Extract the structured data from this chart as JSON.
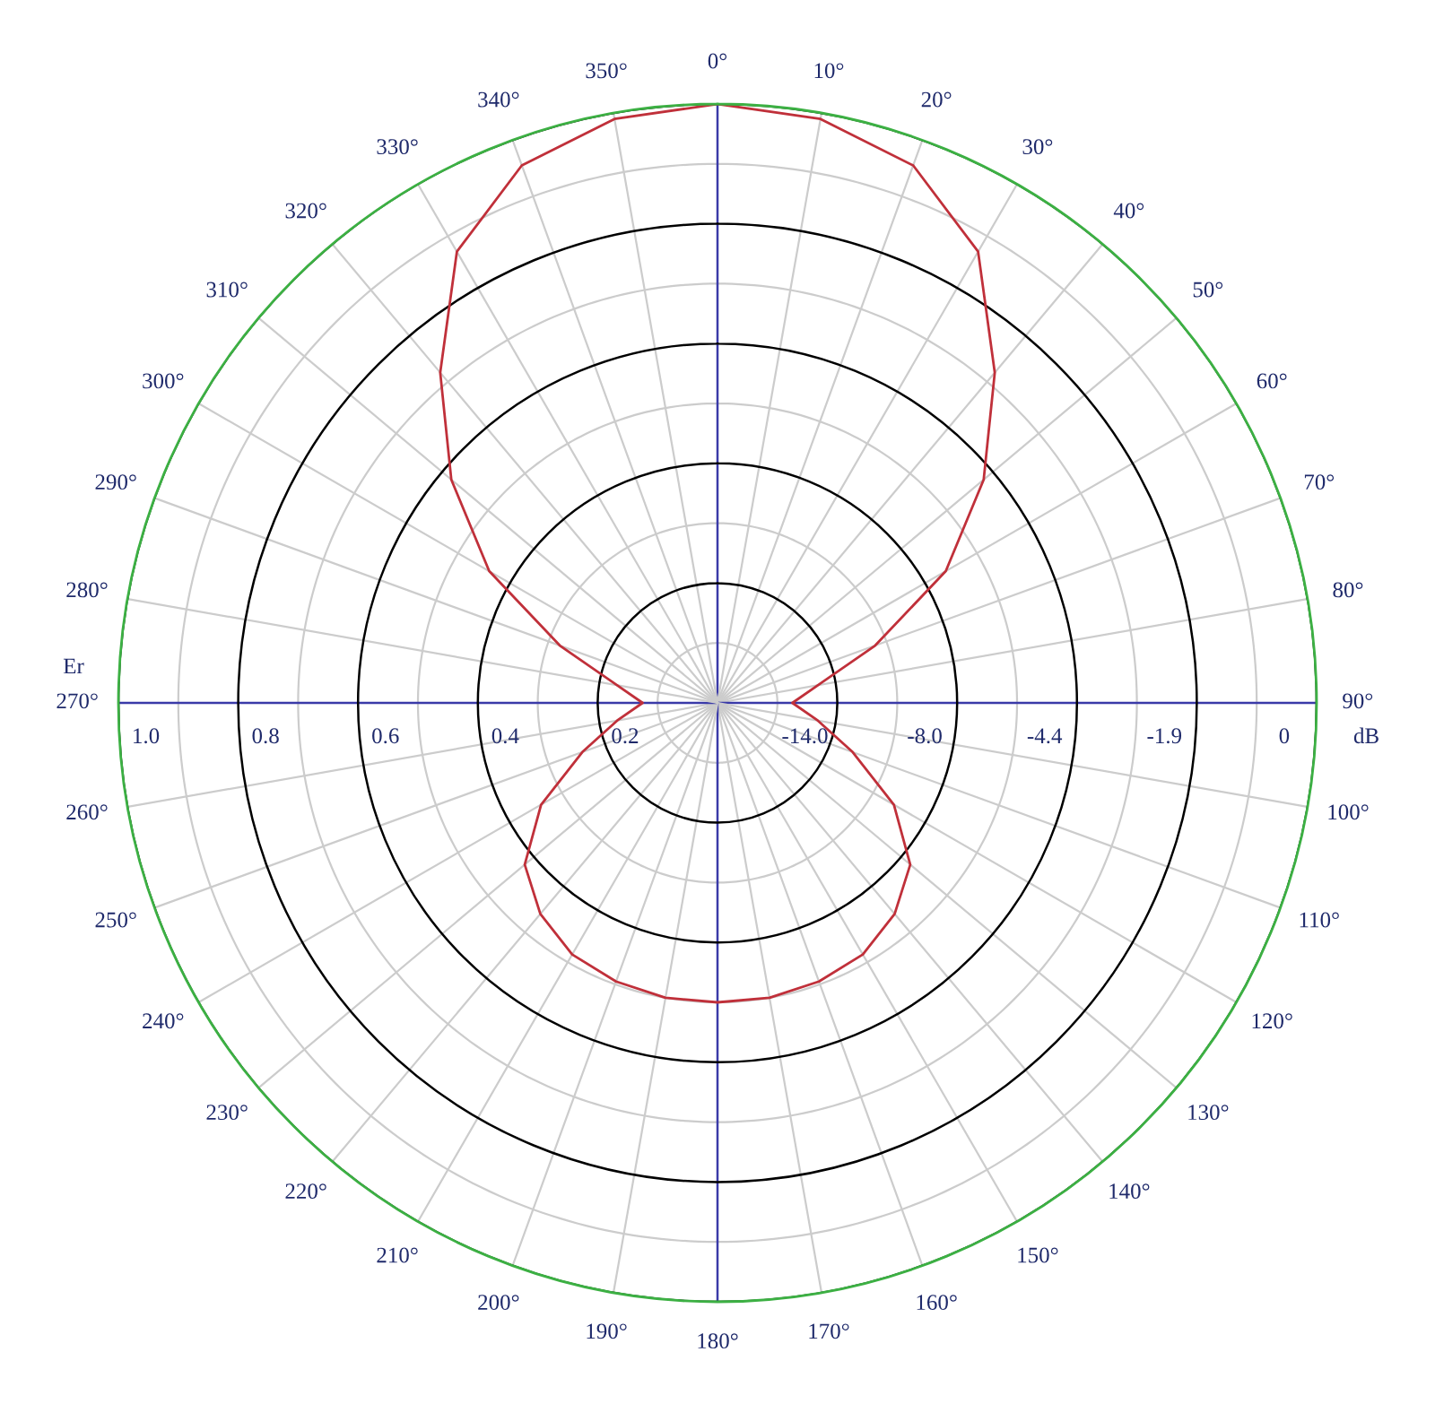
{
  "chart_data": {
    "type": "radar",
    "categories": [
      "0°",
      "10°",
      "20°",
      "30°",
      "40°",
      "50°",
      "60°",
      "70°",
      "80°",
      "90°",
      "100°",
      "110°",
      "120°",
      "130°",
      "140°",
      "150°",
      "160°",
      "170°",
      "180°",
      "190°",
      "200°",
      "210°",
      "220°",
      "230°",
      "240°",
      "250°",
      "260°",
      "270°",
      "280°",
      "290°",
      "300°",
      "310°",
      "320°",
      "330°",
      "340°",
      "350°"
    ],
    "series": [
      {
        "color": "#c0303a",
        "values": [
          1.0,
          0.99,
          0.955,
          0.87,
          0.72,
          0.58,
          0.44,
          0.28,
          0.17,
          0.125,
          0.17,
          0.24,
          0.34,
          0.42,
          0.46,
          0.485,
          0.495,
          0.5,
          0.5,
          0.5,
          0.495,
          0.485,
          0.46,
          0.42,
          0.34,
          0.24,
          0.17,
          0.125,
          0.17,
          0.28,
          0.44,
          0.58,
          0.72,
          0.87,
          0.955,
          0.99
        ]
      }
    ],
    "ylim": [
      0,
      1
    ],
    "yticks": [
      {
        "value": 0.2,
        "label": "0.2"
      },
      {
        "value": 0.4,
        "label": "0.4"
      },
      {
        "value": 0.6,
        "label": "0.6"
      },
      {
        "value": 0.8,
        "label": "0.8"
      },
      {
        "value": 1.0,
        "label": "1.0"
      }
    ],
    "annotations": [
      "-14.0",
      "-8.0",
      "-4.4",
      "-1.9",
      "0"
    ],
    "ylabel": "Er",
    "y2label": "dB",
    "grid": true,
    "marker": "none",
    "line_style": "solid"
  }
}
